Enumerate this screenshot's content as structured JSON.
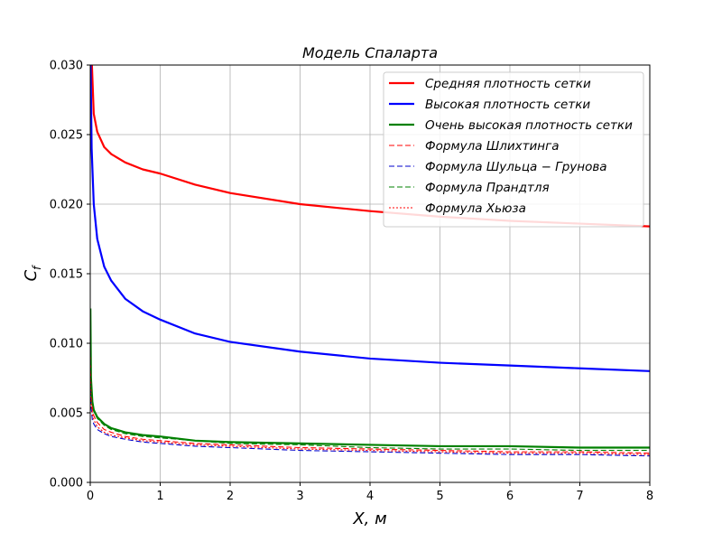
{
  "chart_data": {
    "type": "line",
    "title": "Модель Спаларта",
    "xlabel": "X,  м",
    "ylabel": "C_f",
    "xlim": [
      0,
      8
    ],
    "ylim": [
      0,
      0.03
    ],
    "xticks": [
      0,
      1,
      2,
      3,
      4,
      5,
      6,
      7,
      8
    ],
    "xtick_labels": [
      "0",
      "1",
      "2",
      "3",
      "4",
      "5",
      "6",
      "7",
      "8"
    ],
    "yticks": [
      0,
      0.005,
      0.01,
      0.015,
      0.02,
      0.025,
      0.03
    ],
    "ytick_labels": [
      "0.000",
      "0.005",
      "0.010",
      "0.015",
      "0.020",
      "0.025",
      "0.030"
    ],
    "grid": true,
    "legend_position": "top-right",
    "series": [
      {
        "name": "Средняя плотность сетки",
        "color": "#ff0000",
        "style": "solid",
        "x": [
          0.02,
          0.05,
          0.1,
          0.2,
          0.3,
          0.5,
          0.75,
          1,
          1.5,
          2,
          3,
          4,
          5,
          6,
          7,
          8
        ],
        "y": [
          0.0305,
          0.0265,
          0.0252,
          0.0241,
          0.0236,
          0.023,
          0.0225,
          0.0222,
          0.0214,
          0.0208,
          0.02,
          0.0195,
          0.0191,
          0.0188,
          0.0186,
          0.0184
        ]
      },
      {
        "name": "Высокая плотность сетки",
        "color": "#0000ff",
        "style": "solid",
        "x": [
          0.005,
          0.02,
          0.05,
          0.1,
          0.2,
          0.3,
          0.5,
          0.75,
          1,
          1.5,
          2,
          3,
          4,
          5,
          6,
          7,
          8
        ],
        "y": [
          0.03,
          0.024,
          0.02,
          0.0175,
          0.0155,
          0.0145,
          0.0132,
          0.0123,
          0.0117,
          0.0107,
          0.0101,
          0.0094,
          0.0089,
          0.0086,
          0.0084,
          0.0082,
          0.008
        ]
      },
      {
        "name": "Очень высокая плотность сетки",
        "color": "#008000",
        "style": "solid",
        "x": [
          0.002,
          0.01,
          0.03,
          0.05,
          0.1,
          0.2,
          0.3,
          0.5,
          0.75,
          1,
          1.5,
          2,
          3,
          4,
          5,
          6,
          7,
          8
        ],
        "y": [
          0.0125,
          0.0075,
          0.0058,
          0.0052,
          0.0047,
          0.0042,
          0.0039,
          0.0036,
          0.0034,
          0.0033,
          0.003,
          0.0029,
          0.0028,
          0.0027,
          0.0026,
          0.0026,
          0.0025,
          0.0025
        ]
      },
      {
        "name": "Формула Шлихтинга",
        "color": "#ff0000",
        "style": "dashed",
        "x": [
          0.002,
          0.01,
          0.03,
          0.05,
          0.1,
          0.2,
          0.3,
          0.5,
          0.75,
          1,
          1.5,
          2,
          3,
          4,
          5,
          6,
          7,
          8
        ],
        "y": [
          0.009,
          0.0064,
          0.0053,
          0.0048,
          0.0043,
          0.0038,
          0.0036,
          0.0033,
          0.0031,
          0.003,
          0.0028,
          0.0027,
          0.0025,
          0.0024,
          0.0023,
          0.0022,
          0.0022,
          0.0021
        ]
      },
      {
        "name": "Формула Шульца − Грунова",
        "color": "#0000cc",
        "style": "dashed",
        "x": [
          0.002,
          0.01,
          0.03,
          0.05,
          0.1,
          0.2,
          0.3,
          0.5,
          0.75,
          1,
          1.5,
          2,
          3,
          4,
          5,
          6,
          7,
          8
        ],
        "y": [
          0.0072,
          0.0055,
          0.0045,
          0.0042,
          0.0038,
          0.0035,
          0.0033,
          0.0031,
          0.0029,
          0.0028,
          0.0026,
          0.0025,
          0.0023,
          0.0022,
          0.0021,
          0.002,
          0.002,
          0.0019
        ]
      },
      {
        "name": "Формула Прандтля",
        "color": "#008000",
        "style": "dashed",
        "x": [
          0.002,
          0.01,
          0.03,
          0.05,
          0.1,
          0.2,
          0.3,
          0.5,
          0.75,
          1,
          1.5,
          2,
          3,
          4,
          5,
          6,
          7,
          8
        ],
        "y": [
          0.01,
          0.007,
          0.0056,
          0.0051,
          0.0046,
          0.0041,
          0.0038,
          0.0035,
          0.0033,
          0.0032,
          0.003,
          0.0028,
          0.0027,
          0.0025,
          0.0024,
          0.0024,
          0.0023,
          0.0023
        ]
      },
      {
        "name": "Формула Хьюза",
        "color": "#ff0000",
        "style": "dotted",
        "x": [
          0.002,
          0.01,
          0.03,
          0.05,
          0.1,
          0.2,
          0.3,
          0.5,
          0.75,
          1,
          1.5,
          2,
          3,
          4,
          5,
          6,
          7,
          8
        ],
        "y": [
          0.008,
          0.0059,
          0.0049,
          0.0045,
          0.004,
          0.0036,
          0.0034,
          0.0032,
          0.003,
          0.0029,
          0.0027,
          0.0026,
          0.0024,
          0.0023,
          0.0022,
          0.0021,
          0.0021,
          0.002
        ]
      }
    ]
  }
}
